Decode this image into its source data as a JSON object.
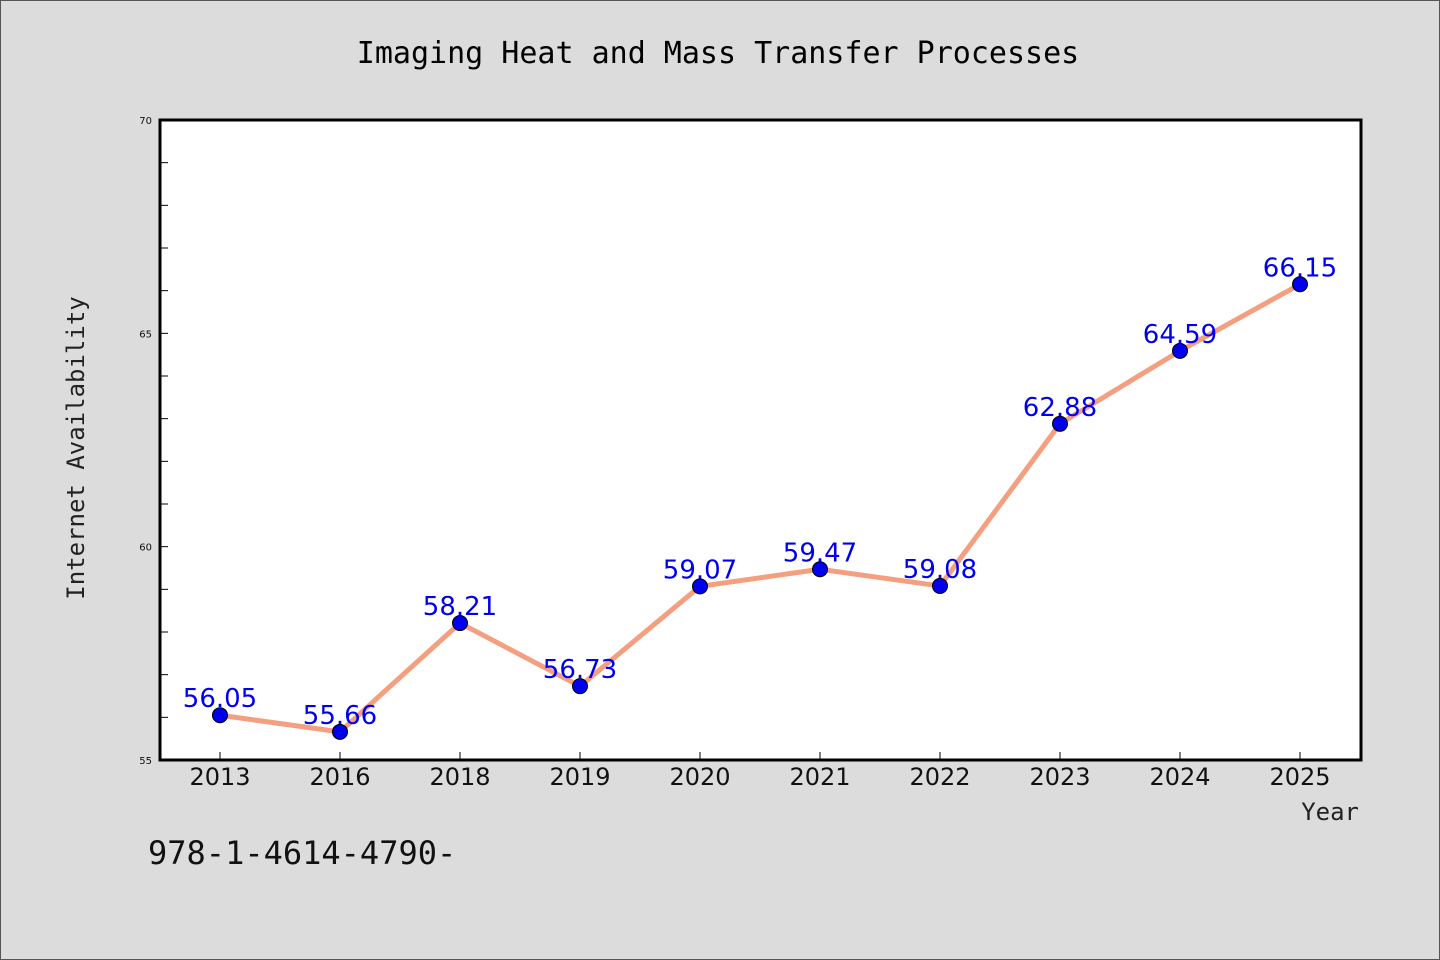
{
  "chart_data": {
    "type": "line",
    "title": "Imaging Heat and Mass Transfer Processes",
    "xlabel": "Year",
    "ylabel": "Internet Availability",
    "categories": [
      "2013",
      "2016",
      "2018",
      "2019",
      "2020",
      "2021",
      "2022",
      "2023",
      "2024",
      "2025"
    ],
    "series": [
      {
        "values": [
          56.05,
          55.66,
          58.21,
          56.73,
          59.07,
          59.47,
          59.08,
          62.88,
          64.59,
          66.15
        ],
        "data_labels": [
          "56.05",
          "55.66",
          "58.21",
          "56.73",
          "59.07",
          "59.47",
          "59.08",
          "62.88",
          "64.59",
          "66.15"
        ],
        "line_color": "#f4a080",
        "marker_color": "#0000ee"
      }
    ],
    "ylim": [
      55,
      70
    ],
    "yticks": [
      "55",
      "60",
      "65",
      "70"
    ],
    "grid": false,
    "legend": false
  },
  "footer": {
    "text": "978-1-4614-4790-"
  }
}
